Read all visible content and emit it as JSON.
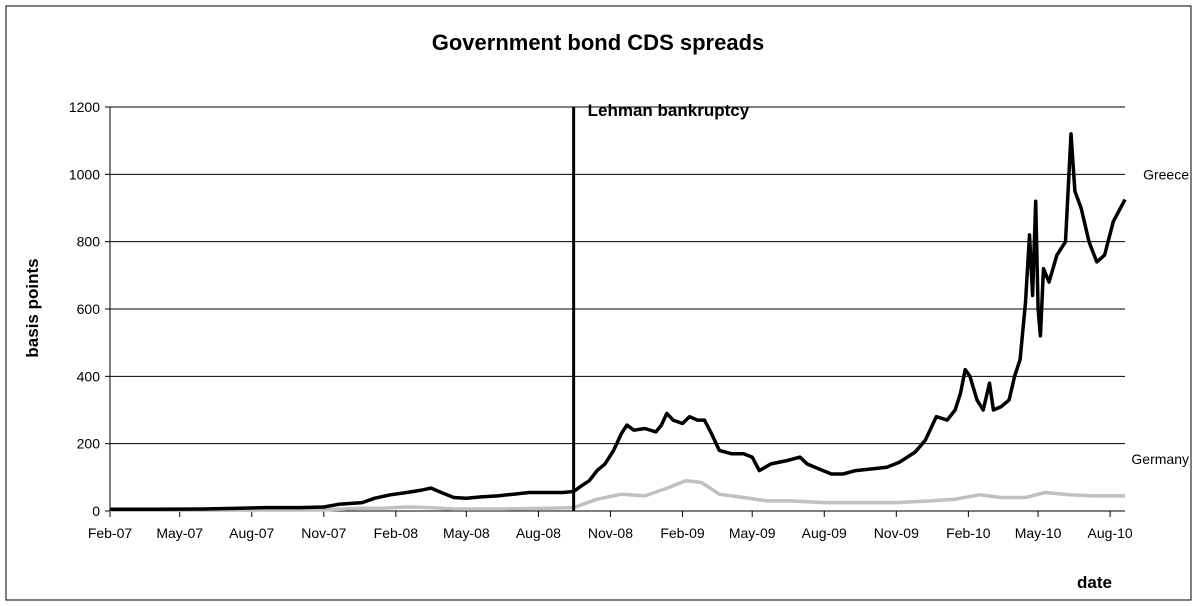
{
  "chart_data": {
    "type": "line",
    "title": "Government bond CDS spreads",
    "xlabel": "date",
    "ylabel": "basis points",
    "ylim": [
      0,
      1200
    ],
    "yticks": [
      0,
      200,
      400,
      600,
      800,
      1000,
      1200
    ],
    "xlim": [
      "2007-02-01",
      "2010-08-20"
    ],
    "xticks": [
      {
        "date": "2007-02-01",
        "label": "Feb-07"
      },
      {
        "date": "2007-05-01",
        "label": "May-07"
      },
      {
        "date": "2007-08-01",
        "label": "Aug-07"
      },
      {
        "date": "2007-11-01",
        "label": "Nov-07"
      },
      {
        "date": "2008-02-01",
        "label": "Feb-08"
      },
      {
        "date": "2008-05-01",
        "label": "May-08"
      },
      {
        "date": "2008-08-01",
        "label": "Aug-08"
      },
      {
        "date": "2008-11-01",
        "label": "Nov-08"
      },
      {
        "date": "2009-02-01",
        "label": "Feb-09"
      },
      {
        "date": "2009-05-01",
        "label": "May-09"
      },
      {
        "date": "2009-08-01",
        "label": "Aug-09"
      },
      {
        "date": "2009-11-01",
        "label": "Nov-09"
      },
      {
        "date": "2010-02-01",
        "label": "Feb-10"
      },
      {
        "date": "2010-05-01",
        "label": "May-10"
      },
      {
        "date": "2010-08-01",
        "label": "Aug-10"
      }
    ],
    "grid": true,
    "annotations": [
      {
        "date": "2008-09-15",
        "label": "Lehman bankruptcy"
      }
    ],
    "colors": {
      "Greece": "#000000",
      "Germany": "#c0c0c0"
    },
    "series": [
      {
        "name": "Greece",
        "points": [
          [
            "2007-02-01",
            5
          ],
          [
            "2007-04-01",
            5
          ],
          [
            "2007-06-01",
            6
          ],
          [
            "2007-07-15",
            8
          ],
          [
            "2007-08-20",
            10
          ],
          [
            "2007-10-01",
            10
          ],
          [
            "2007-11-01",
            12
          ],
          [
            "2007-11-20",
            20
          ],
          [
            "2007-12-20",
            25
          ],
          [
            "2008-01-05",
            38
          ],
          [
            "2008-01-25",
            48
          ],
          [
            "2008-02-15",
            55
          ],
          [
            "2008-03-05",
            62
          ],
          [
            "2008-03-17",
            68
          ],
          [
            "2008-03-30",
            55
          ],
          [
            "2008-04-15",
            40
          ],
          [
            "2008-05-01",
            38
          ],
          [
            "2008-05-20",
            42
          ],
          [
            "2008-06-10",
            45
          ],
          [
            "2008-06-30",
            50
          ],
          [
            "2008-07-20",
            55
          ],
          [
            "2008-08-10",
            55
          ],
          [
            "2008-09-01",
            55
          ],
          [
            "2008-09-15",
            58
          ],
          [
            "2008-09-25",
            75
          ],
          [
            "2008-10-05",
            90
          ],
          [
            "2008-10-15",
            120
          ],
          [
            "2008-10-25",
            140
          ],
          [
            "2008-11-05",
            180
          ],
          [
            "2008-11-15",
            230
          ],
          [
            "2008-11-22",
            255
          ],
          [
            "2008-12-01",
            240
          ],
          [
            "2008-12-15",
            245
          ],
          [
            "2008-12-29",
            235
          ],
          [
            "2009-01-05",
            255
          ],
          [
            "2009-01-12",
            290
          ],
          [
            "2009-01-20",
            270
          ],
          [
            "2009-02-01",
            260
          ],
          [
            "2009-02-10",
            280
          ],
          [
            "2009-02-20",
            270
          ],
          [
            "2009-03-01",
            270
          ],
          [
            "2009-03-10",
            230
          ],
          [
            "2009-03-20",
            180
          ],
          [
            "2009-04-05",
            170
          ],
          [
            "2009-04-20",
            170
          ],
          [
            "2009-05-01",
            160
          ],
          [
            "2009-05-10",
            120
          ],
          [
            "2009-05-25",
            140
          ],
          [
            "2009-06-15",
            150
          ],
          [
            "2009-07-01",
            160
          ],
          [
            "2009-07-10",
            140
          ],
          [
            "2009-07-25",
            125
          ],
          [
            "2009-08-10",
            110
          ],
          [
            "2009-08-25",
            110
          ],
          [
            "2009-09-10",
            120
          ],
          [
            "2009-10-01",
            125
          ],
          [
            "2009-10-20",
            130
          ],
          [
            "2009-11-05",
            145
          ],
          [
            "2009-11-25",
            175
          ],
          [
            "2009-12-08",
            210
          ],
          [
            "2009-12-22",
            280
          ],
          [
            "2010-01-05",
            270
          ],
          [
            "2010-01-15",
            300
          ],
          [
            "2010-01-22",
            350
          ],
          [
            "2010-01-28",
            420
          ],
          [
            "2010-02-03",
            400
          ],
          [
            "2010-02-12",
            330
          ],
          [
            "2010-02-20",
            300
          ],
          [
            "2010-02-28",
            380
          ],
          [
            "2010-03-05",
            300
          ],
          [
            "2010-03-15",
            310
          ],
          [
            "2010-03-25",
            330
          ],
          [
            "2010-04-01",
            400
          ],
          [
            "2010-04-08",
            450
          ],
          [
            "2010-04-15",
            620
          ],
          [
            "2010-04-20",
            820
          ],
          [
            "2010-04-24",
            640
          ],
          [
            "2010-04-28",
            920
          ],
          [
            "2010-05-01",
            600
          ],
          [
            "2010-05-04",
            520
          ],
          [
            "2010-05-08",
            720
          ],
          [
            "2010-05-15",
            680
          ],
          [
            "2010-05-25",
            760
          ],
          [
            "2010-06-05",
            800
          ],
          [
            "2010-06-12",
            1120
          ],
          [
            "2010-06-17",
            950
          ],
          [
            "2010-06-25",
            900
          ],
          [
            "2010-07-05",
            800
          ],
          [
            "2010-07-15",
            740
          ],
          [
            "2010-07-25",
            760
          ],
          [
            "2010-08-05",
            860
          ],
          [
            "2010-08-20",
            925
          ]
        ]
      },
      {
        "name": "Germany",
        "points": [
          [
            "2007-02-01",
            2
          ],
          [
            "2007-11-01",
            3
          ],
          [
            "2007-12-15",
            8
          ],
          [
            "2008-01-15",
            8
          ],
          [
            "2008-02-15",
            12
          ],
          [
            "2008-03-15",
            10
          ],
          [
            "2008-04-15",
            6
          ],
          [
            "2008-06-15",
            6
          ],
          [
            "2008-08-15",
            8
          ],
          [
            "2008-09-15",
            10
          ],
          [
            "2008-10-15",
            35
          ],
          [
            "2008-11-15",
            50
          ],
          [
            "2008-12-15",
            45
          ],
          [
            "2009-01-15",
            70
          ],
          [
            "2009-02-05",
            90
          ],
          [
            "2009-02-25",
            85
          ],
          [
            "2009-03-20",
            50
          ],
          [
            "2009-04-20",
            40
          ],
          [
            "2009-05-20",
            30
          ],
          [
            "2009-06-20",
            30
          ],
          [
            "2009-08-01",
            25
          ],
          [
            "2009-09-15",
            25
          ],
          [
            "2009-11-01",
            25
          ],
          [
            "2009-12-15",
            30
          ],
          [
            "2010-01-15",
            35
          ],
          [
            "2010-02-15",
            48
          ],
          [
            "2010-03-15",
            40
          ],
          [
            "2010-04-15",
            40
          ],
          [
            "2010-05-10",
            55
          ],
          [
            "2010-06-10",
            48
          ],
          [
            "2010-07-10",
            45
          ],
          [
            "2010-08-20",
            45
          ]
        ]
      }
    ]
  }
}
